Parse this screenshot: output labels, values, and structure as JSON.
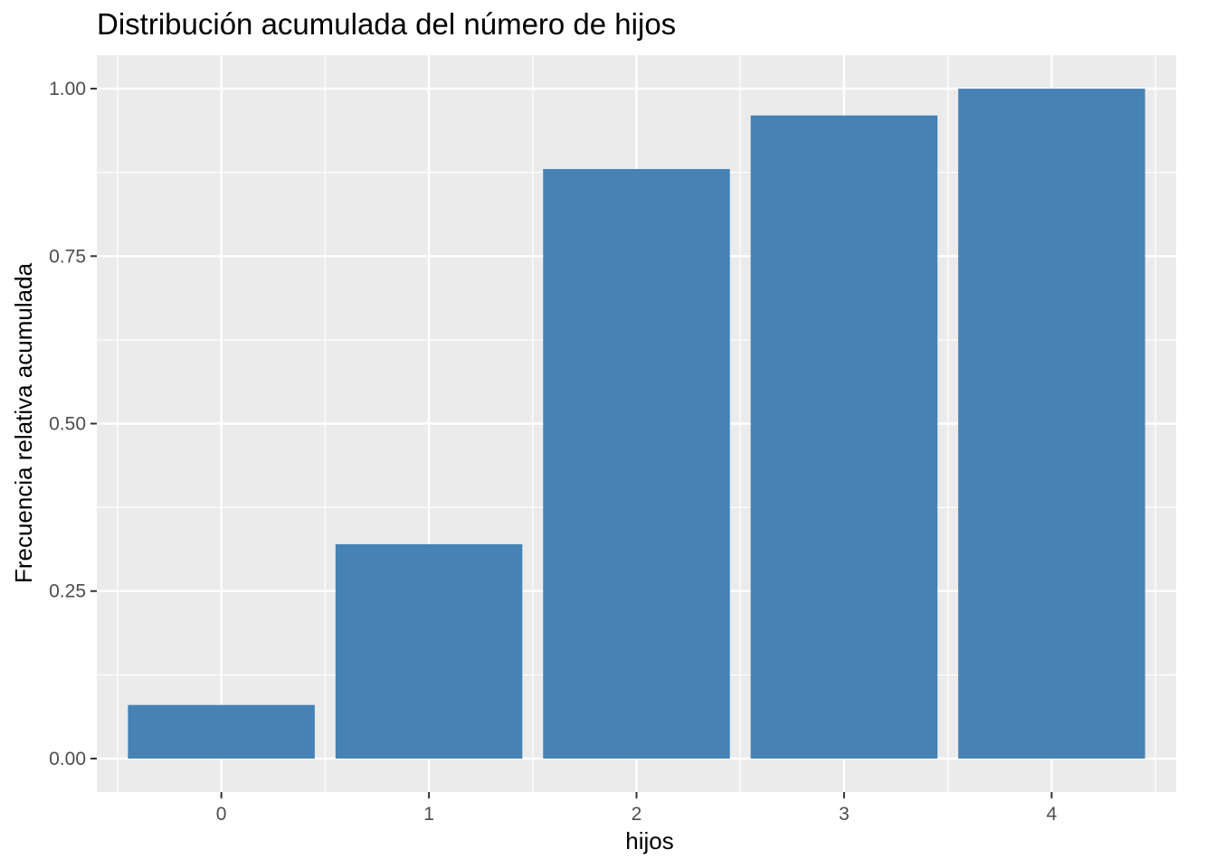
{
  "chart_data": {
    "type": "bar",
    "title": "Distribución acumulada del número de hijos",
    "xlabel": "hijos",
    "ylabel": "Frecuencia relativa acumulada",
    "categories": [
      "0",
      "1",
      "2",
      "3",
      "4"
    ],
    "values": [
      0.08,
      0.32,
      0.88,
      0.96,
      1.0
    ],
    "ylim": [
      -0.05,
      1.05
    ],
    "yticks": [
      0.0,
      0.25,
      0.5,
      0.75,
      1.0
    ],
    "ytick_labels": [
      "0.00",
      "0.25",
      "0.50",
      "0.75",
      "1.00"
    ],
    "bar_color": "#4682B4",
    "panel_color": "#EBEBEB",
    "grid": true,
    "legend": "none"
  }
}
